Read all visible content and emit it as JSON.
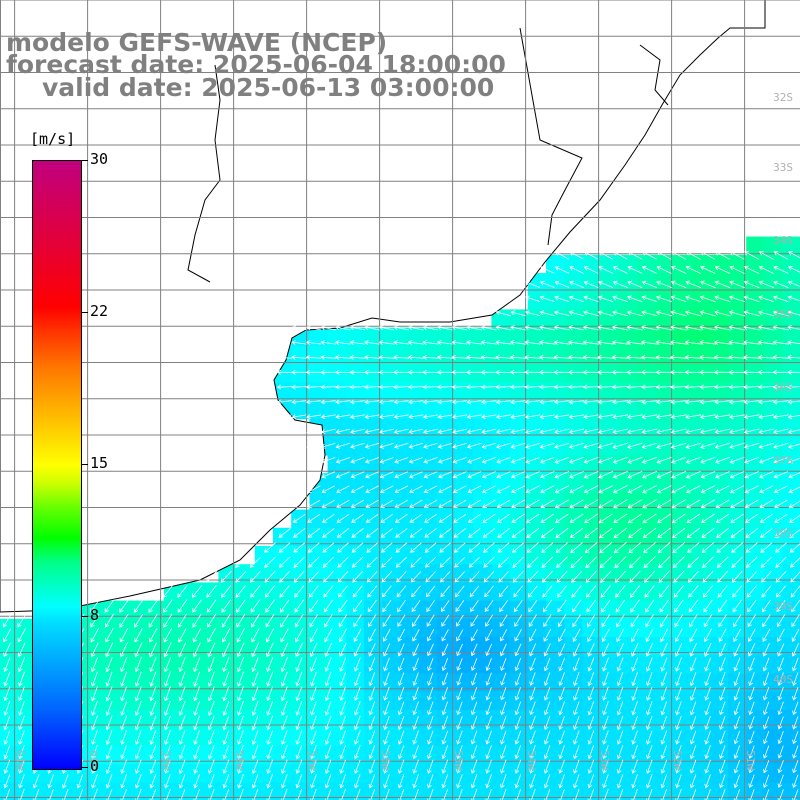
{
  "title": {
    "line1": "modelo GEFS-WAVE (NCEP)",
    "line2": "forecast date: 2025-06-04 18:00:00",
    "line3": "valid date: 2025-06-13 03:00:00"
  },
  "colorbar": {
    "unit": "[m/s]",
    "labels": [
      "30",
      "22",
      "15",
      "8",
      "0"
    ],
    "values": [
      30,
      22,
      15,
      8,
      0
    ]
  },
  "lat_labels": [
    "32S",
    "33S",
    "34S",
    "35S",
    "36S",
    "37S",
    "38S",
    "39S",
    "40S"
  ],
  "lon_labels": [
    "61W",
    "60W",
    "59W",
    "58W",
    "57W",
    "56W",
    "55W",
    "54W",
    "53W",
    "52W",
    "51W"
  ],
  "colors": {
    "land": "#ffffff",
    "coast": "#000000",
    "grid": "#808080",
    "arrow": "#ffffff",
    "title": "#808080"
  },
  "field": {
    "variable": "wind speed",
    "units": "m/s",
    "range": [
      0,
      30
    ],
    "dominant_range": [
      6,
      13
    ],
    "direction": "mostly from north-east to south-west in the north, from north in the south"
  }
}
